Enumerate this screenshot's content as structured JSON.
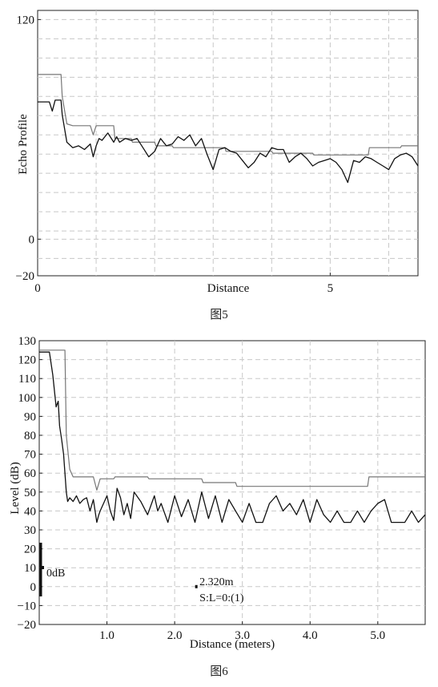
{
  "figures": [
    {
      "caption": "图5"
    },
    {
      "caption": "图6"
    }
  ],
  "chart_data": [
    {
      "type": "line",
      "title": "",
      "xlabel": "Distance",
      "ylabel": "Echo Profile",
      "xlim": [
        0,
        6.5
      ],
      "ylim": [
        -20,
        125
      ],
      "y_ticks": [
        120,
        0,
        -20
      ],
      "y_tick_labels": [
        "120",
        "0",
        "−20"
      ],
      "x_ticks": [
        0,
        5
      ],
      "x_tick_labels": [
        "0",
        "5"
      ],
      "grid": true,
      "series": [
        {
          "color": "#777777",
          "x": [
            0,
            0.4,
            0.42,
            0.5,
            0.6,
            0.9,
            0.95,
            1.0,
            1.3,
            1.32,
            1.6,
            1.62,
            2.0,
            2.02,
            2.3,
            2.32,
            3.2,
            3.22,
            4.0,
            4.02,
            4.7,
            4.72,
            5.65,
            5.67,
            6.2,
            6.22,
            6.5
          ],
          "y": [
            90,
            90,
            78,
            63,
            62,
            62,
            57,
            62,
            62,
            55,
            55,
            53,
            53,
            51,
            51,
            50,
            50,
            48,
            48,
            47,
            47,
            46,
            46,
            50,
            50,
            51,
            51
          ]
        },
        {
          "color": "#111111",
          "x": [
            0,
            0.2,
            0.25,
            0.3,
            0.4,
            0.42,
            0.5,
            0.6,
            0.7,
            0.8,
            0.9,
            0.95,
            1.0,
            1.05,
            1.1,
            1.2,
            1.3,
            1.35,
            1.4,
            1.5,
            1.6,
            1.7,
            1.8,
            1.9,
            2.0,
            2.1,
            2.2,
            2.3,
            2.4,
            2.5,
            2.6,
            2.7,
            2.8,
            2.9,
            3.0,
            3.1,
            3.2,
            3.3,
            3.4,
            3.5,
            3.6,
            3.7,
            3.8,
            3.9,
            4.0,
            4.1,
            4.2,
            4.3,
            4.4,
            4.5,
            4.6,
            4.7,
            4.8,
            4.9,
            5.0,
            5.1,
            5.2,
            5.3,
            5.4,
            5.5,
            5.6,
            5.7,
            5.8,
            5.9,
            6.0,
            6.1,
            6.2,
            6.3,
            6.4,
            6.5
          ],
          "y": [
            75,
            75,
            70,
            76,
            76,
            68,
            53,
            50,
            51,
            49,
            52,
            45,
            51,
            55,
            54,
            58,
            53,
            56,
            53,
            55,
            54,
            55,
            50,
            45,
            48,
            55,
            51,
            52,
            56,
            54,
            57,
            51,
            55,
            46,
            38,
            49,
            50,
            48,
            47,
            43,
            39,
            42,
            47,
            45,
            50,
            49,
            49,
            42,
            45,
            47,
            44,
            40,
            42,
            43,
            44,
            42,
            38,
            31,
            43,
            42,
            45,
            44,
            42,
            40,
            38,
            44,
            46,
            47,
            45,
            40
          ]
        }
      ]
    },
    {
      "type": "line",
      "title": "",
      "xlabel": "Distance (meters)",
      "ylabel": "Level (dB)",
      "xlim": [
        0,
        5.7
      ],
      "ylim": [
        -20,
        130
      ],
      "y_ticks": [
        130,
        120,
        110,
        100,
        90,
        80,
        70,
        60,
        50,
        40,
        30,
        20,
        10,
        0,
        -10,
        -20
      ],
      "y_tick_labels": [
        "130",
        "120",
        "110",
        "100",
        "90",
        "80",
        "70",
        "60",
        "50",
        "40",
        "30",
        "20",
        "10",
        "0",
        "−10",
        "−20"
      ],
      "x_ticks": [
        1.0,
        2.0,
        3.0,
        4.0,
        5.0
      ],
      "x_tick_labels": [
        "1.0",
        "2.0",
        "3.0",
        "4.0",
        "5.0"
      ],
      "grid": true,
      "annotations": {
        "zero_label": "0dB",
        "cursor_distance": "2.320m",
        "cursor_x": 2.32,
        "status": "S:L=0:(1)"
      },
      "series": [
        {
          "color": "#777777",
          "x": [
            0,
            0.38,
            0.4,
            0.45,
            0.5,
            0.8,
            0.85,
            0.9,
            1.1,
            1.12,
            1.6,
            1.62,
            2.4,
            2.42,
            2.9,
            2.92,
            4.85,
            4.87,
            5.7
          ],
          "y": [
            125,
            125,
            80,
            62,
            58,
            58,
            51,
            57,
            57,
            58,
            58,
            57,
            57,
            55,
            55,
            53,
            53,
            58,
            58
          ]
        },
        {
          "color": "#111111",
          "x": [
            0,
            0.15,
            0.2,
            0.25,
            0.28,
            0.3,
            0.33,
            0.36,
            0.38,
            0.4,
            0.42,
            0.45,
            0.5,
            0.55,
            0.6,
            0.65,
            0.7,
            0.75,
            0.8,
            0.85,
            0.88,
            0.9,
            1.0,
            1.05,
            1.1,
            1.15,
            1.2,
            1.25,
            1.3,
            1.35,
            1.4,
            1.5,
            1.6,
            1.7,
            1.75,
            1.8,
            1.9,
            2.0,
            2.1,
            2.2,
            2.3,
            2.4,
            2.5,
            2.6,
            2.7,
            2.8,
            2.9,
            3.0,
            3.1,
            3.2,
            3.3,
            3.4,
            3.5,
            3.6,
            3.7,
            3.8,
            3.9,
            4.0,
            4.1,
            4.2,
            4.3,
            4.4,
            4.5,
            4.6,
            4.7,
            4.8,
            4.9,
            5.0,
            5.1,
            5.2,
            5.3,
            5.4,
            5.5,
            5.6,
            5.7
          ],
          "y": [
            124,
            124,
            112,
            95,
            98,
            85,
            78,
            70,
            60,
            50,
            45,
            47,
            45,
            48,
            44,
            46,
            47,
            40,
            46,
            34,
            38,
            40,
            48,
            40,
            35,
            52,
            47,
            38,
            44,
            36,
            50,
            45,
            38,
            48,
            40,
            44,
            34,
            48,
            37,
            46,
            34,
            50,
            36,
            48,
            34,
            46,
            40,
            34,
            44,
            34,
            34,
            44,
            48,
            40,
            44,
            38,
            46,
            34,
            46,
            38,
            34,
            40,
            34,
            34,
            40,
            34,
            40,
            44,
            46,
            34,
            34,
            34,
            40,
            34,
            38
          ]
        }
      ]
    }
  ]
}
